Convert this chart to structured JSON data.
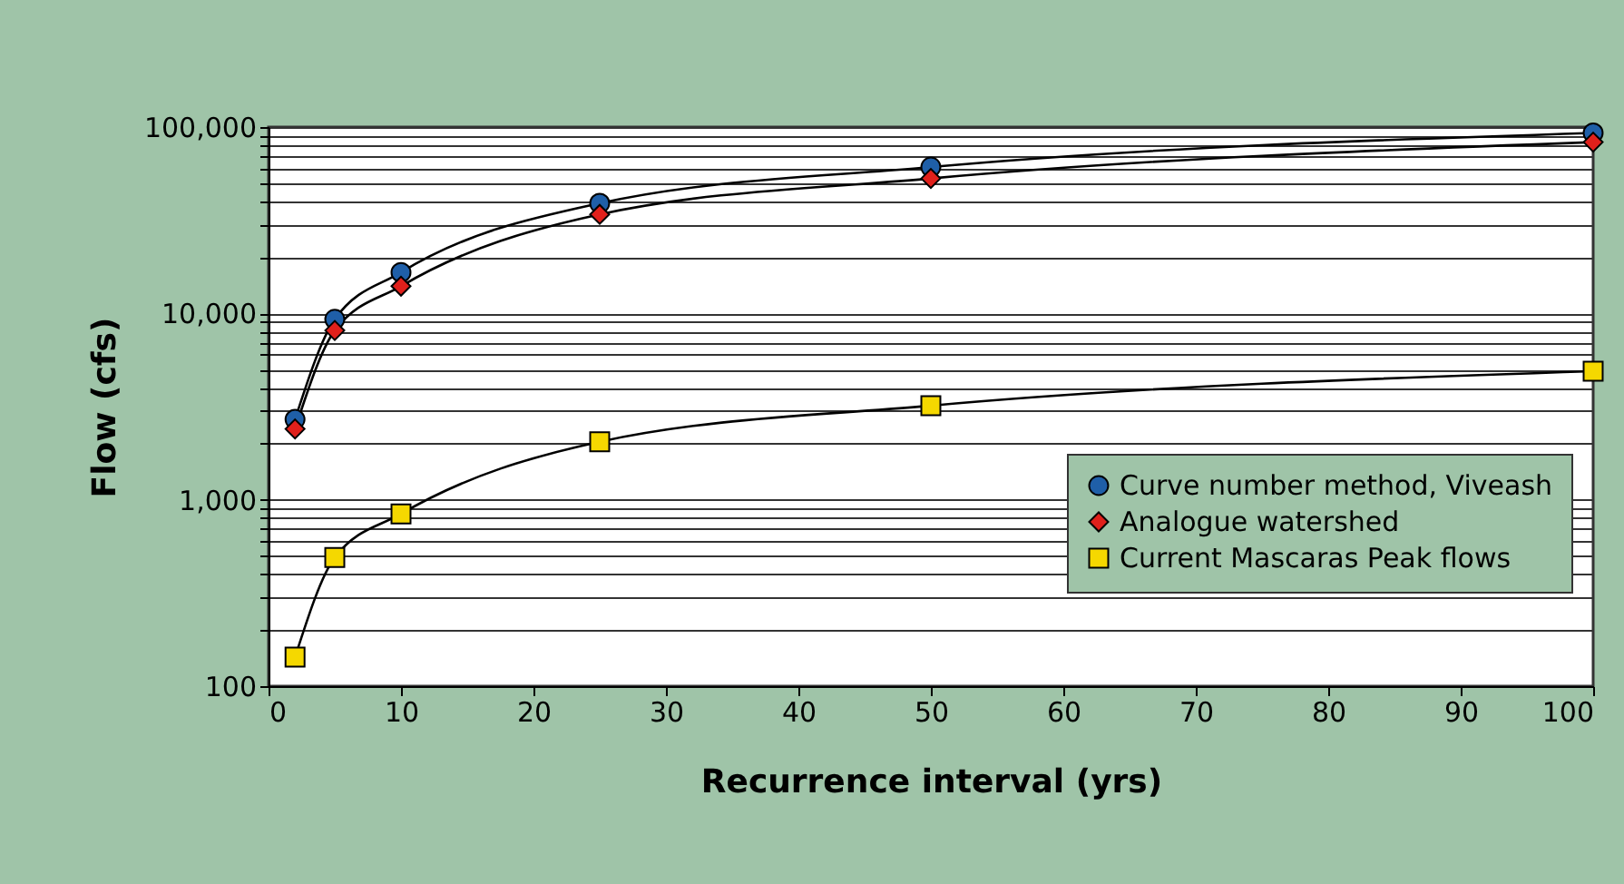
{
  "chart_data": {
    "type": "line",
    "xlabel": "Recurrence interval (yrs)",
    "ylabel": "Flow (cfs)",
    "x": [
      2,
      5,
      10,
      25,
      50,
      100
    ],
    "series": [
      {
        "name": "Curve number method, Viveash",
        "color": "#1f5fa8",
        "marker": "circle",
        "values": [
          2700,
          9300,
          16600,
          39000,
          61000,
          93000
        ]
      },
      {
        "name": "Analogue watershed",
        "color": "#e0201b",
        "marker": "diamond",
        "values": [
          2400,
          8100,
          14000,
          34000,
          53000,
          83000
        ]
      },
      {
        "name": "Current Mascaras Peak flows",
        "color": "#f5d800",
        "marker": "square",
        "values": [
          143,
          490,
          840,
          2050,
          3200,
          4900
        ]
      }
    ],
    "log": "y",
    "xlim": [
      0,
      100
    ],
    "xticks": [
      0,
      10,
      20,
      30,
      40,
      50,
      60,
      70,
      80,
      90,
      100
    ],
    "ylim": [
      100,
      100000
    ],
    "yticks": [
      {
        "value": 100,
        "label": "100"
      },
      {
        "value": 200,
        "label": null
      },
      {
        "value": 300,
        "label": null
      },
      {
        "value": 400,
        "label": null
      },
      {
        "value": 500,
        "label": null
      },
      {
        "value": 600,
        "label": null
      },
      {
        "value": 700,
        "label": null
      },
      {
        "value": 800,
        "label": null
      },
      {
        "value": 900,
        "label": null
      },
      {
        "value": 1000,
        "label": "1,000"
      },
      {
        "value": 2000,
        "label": null
      },
      {
        "value": 3000,
        "label": null
      },
      {
        "value": 4000,
        "label": null
      },
      {
        "value": 5000,
        "label": null
      },
      {
        "value": 6000,
        "label": null
      },
      {
        "value": 7000,
        "label": null
      },
      {
        "value": 8000,
        "label": null
      },
      {
        "value": 9000,
        "label": null
      },
      {
        "value": 10000,
        "label": "10,000"
      },
      {
        "value": 20000,
        "label": null
      },
      {
        "value": 30000,
        "label": null
      },
      {
        "value": 40000,
        "label": null
      },
      {
        "value": 50000,
        "label": null
      },
      {
        "value": 60000,
        "label": null
      },
      {
        "value": 70000,
        "label": null
      },
      {
        "value": 80000,
        "label": null
      },
      {
        "value": 90000,
        "label": null
      },
      {
        "value": 100000,
        "label": "100,000"
      }
    ],
    "grid": "y",
    "legend": "bottom right",
    "line_style": "solid"
  }
}
